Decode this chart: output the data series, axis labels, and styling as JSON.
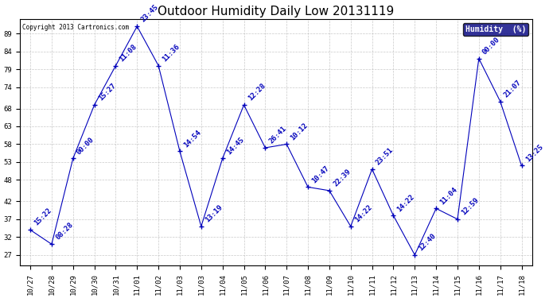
{
  "title": "Outdoor Humidity Daily Low 20131119",
  "copyright": "Copyright 2013 Cartronics.com",
  "legend_label": "Humidity  (%)",
  "x_labels": [
    "10/27",
    "10/28",
    "10/29",
    "10/30",
    "10/31",
    "11/01",
    "11/02",
    "11/03",
    "11/03",
    "11/04",
    "11/05",
    "11/06",
    "11/07",
    "11/08",
    "11/09",
    "11/10",
    "11/11",
    "11/12",
    "11/13",
    "11/14",
    "11/15",
    "11/16",
    "11/17",
    "11/18"
  ],
  "x_indices": [
    0,
    1,
    2,
    3,
    4,
    5,
    6,
    7,
    8,
    9,
    10,
    11,
    12,
    13,
    14,
    15,
    16,
    17,
    18,
    19,
    20,
    21,
    22,
    23
  ],
  "y_values": [
    34,
    30,
    54,
    69,
    80,
    91,
    80,
    56,
    35,
    54,
    69,
    57,
    58,
    46,
    45,
    35,
    51,
    38,
    27,
    40,
    37,
    82,
    70,
    52
  ],
  "timestamps": [
    "15:22",
    "08:28",
    "00:00",
    "15:27",
    "11:08",
    "23:45",
    "11:36",
    "14:54",
    "13:19",
    "14:45",
    "12:28",
    "26:41",
    "10:12",
    "10:47",
    "22:39",
    "14:22",
    "23:51",
    "14:22",
    "12:40",
    "11:04",
    "12:59",
    "00:00",
    "21:07",
    "13:25"
  ],
  "point_color": "#0000bb",
  "line_color": "#0000bb",
  "bg_color": "#ffffff",
  "grid_color": "#bbbbbb",
  "ylim": [
    24,
    93
  ],
  "yticks": [
    27,
    32,
    37,
    42,
    48,
    53,
    58,
    63,
    68,
    74,
    79,
    84,
    89
  ],
  "title_fontsize": 11,
  "label_fontsize": 6.5,
  "annotation_fontsize": 6.5,
  "legend_bg": "#000080",
  "legend_fg": "#ffffff"
}
